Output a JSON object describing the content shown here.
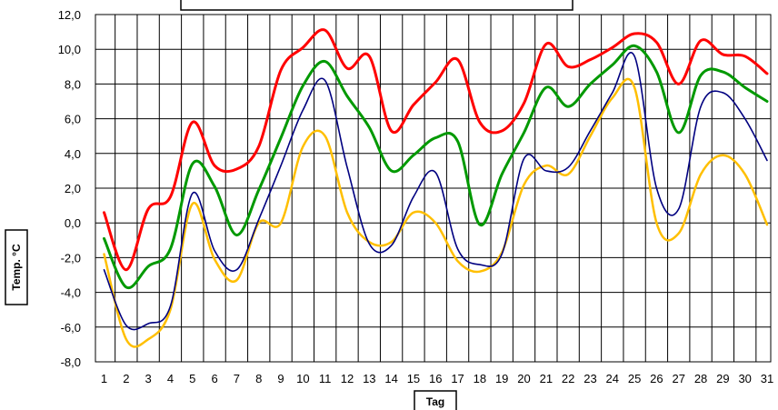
{
  "chart_data": {
    "type": "line",
    "title": "",
    "xlabel": "Tag",
    "ylabel": "Temp. °C",
    "ylim": [
      -8.0,
      12.0
    ],
    "y_ticks": [
      "-8,0",
      "-6,0",
      "-4,0",
      "-2,0",
      "0,0",
      "2,0",
      "4,0",
      "6,0",
      "8,0",
      "10,0",
      "12,0"
    ],
    "categories": [
      "1",
      "2",
      "3",
      "4",
      "5",
      "6",
      "7",
      "8",
      "9",
      "10",
      "11",
      "12",
      "13",
      "14",
      "15",
      "16",
      "17",
      "18",
      "19",
      "20",
      "21",
      "22",
      "23",
      "24",
      "25",
      "26",
      "27",
      "28",
      "29",
      "30",
      "31"
    ],
    "grid": true,
    "legend": "none",
    "series": [
      {
        "color": "#ff0000",
        "stroke_width": 3,
        "values": [
          0.6,
          -2.7,
          0.8,
          1.5,
          5.8,
          3.3,
          3.1,
          4.4,
          8.8,
          10.1,
          11.1,
          8.9,
          9.6,
          5.3,
          6.8,
          8.1,
          9.4,
          5.8,
          5.3,
          6.9,
          10.3,
          9.0,
          9.4,
          10.1,
          10.9,
          10.4,
          8.0,
          10.5,
          9.7,
          9.6,
          8.6
        ]
      },
      {
        "color": "#009900",
        "stroke_width": 3,
        "values": [
          -0.9,
          -3.7,
          -2.5,
          -1.5,
          3.4,
          2.1,
          -0.7,
          1.9,
          4.9,
          7.9,
          9.3,
          7.3,
          5.5,
          3.0,
          3.9,
          4.9,
          4.7,
          -0.1,
          2.8,
          5.2,
          7.8,
          6.7,
          8.0,
          9.1,
          10.2,
          8.7,
          5.2,
          8.5,
          8.7,
          7.8,
          7.0
        ]
      },
      {
        "color": "#000080",
        "stroke_width": 1.6,
        "values": [
          -2.7,
          -5.9,
          -5.8,
          -4.8,
          1.7,
          -1.6,
          -2.7,
          0.2,
          3.3,
          6.5,
          8.2,
          3.2,
          -1.2,
          -1.3,
          1.5,
          2.9,
          -1.5,
          -2.4,
          -1.8,
          3.7,
          3.0,
          3.2,
          5.3,
          7.5,
          9.6,
          2.0,
          0.8,
          6.7,
          7.5,
          6.0,
          3.6
        ]
      },
      {
        "color": "#ffbf00",
        "stroke_width": 2.5,
        "values": [
          -1.8,
          -6.7,
          -6.7,
          -5.0,
          1.1,
          -2.1,
          -3.3,
          0.0,
          0.0,
          4.4,
          5.0,
          0.6,
          -1.1,
          -1.1,
          0.6,
          0.0,
          -2.2,
          -2.8,
          -1.7,
          2.2,
          3.3,
          2.8,
          5.0,
          7.2,
          7.8,
          0.0,
          -0.6,
          2.8,
          3.9,
          2.8,
          -0.1
        ]
      }
    ]
  }
}
